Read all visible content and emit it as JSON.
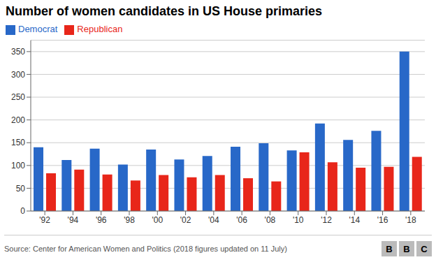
{
  "chart_data": {
    "type": "bar",
    "title": "Number of women candidates in US House primaries",
    "categories": [
      "'92",
      "'94",
      "'96",
      "'98",
      "'00",
      "'02",
      "'04",
      "'06",
      "'08",
      "'10",
      "'12",
      "'14",
      "'16",
      "'18"
    ],
    "series": [
      {
        "name": "Democrat",
        "color": "#2868c8",
        "values": [
          140,
          112,
          137,
          102,
          135,
          113,
          121,
          141,
          149,
          133,
          192,
          156,
          176,
          350
        ]
      },
      {
        "name": "Republican",
        "color": "#e8261a",
        "values": [
          83,
          91,
          80,
          67,
          79,
          74,
          79,
          72,
          65,
          129,
          107,
          95,
          97,
          119
        ]
      }
    ],
    "ylim": [
      0,
      375
    ],
    "yticks": [
      0,
      50,
      100,
      150,
      200,
      250,
      300,
      350
    ],
    "grid": true,
    "legend": "top left",
    "annotations": [
      "Source: Center for American Women and Politics (2018 figures updated on 11 July)",
      "BBC"
    ]
  }
}
